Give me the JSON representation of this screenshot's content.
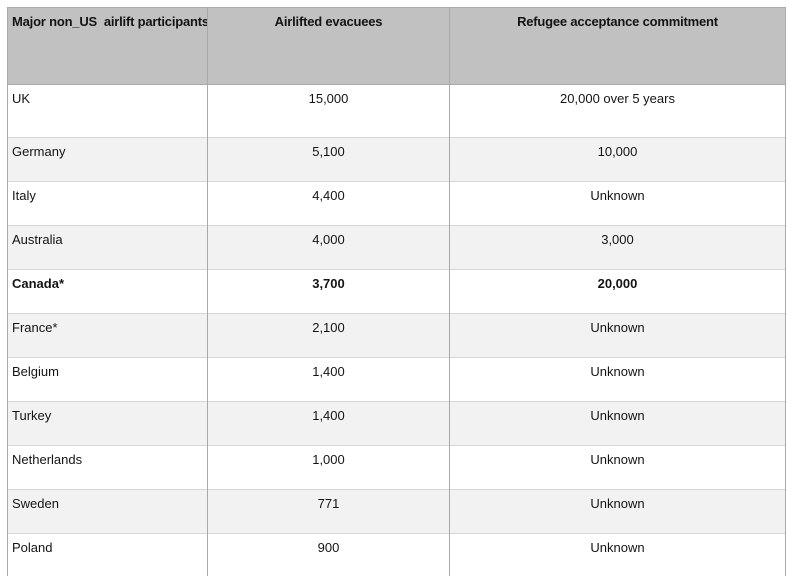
{
  "chart_data": {
    "type": "table",
    "columns": [
      "Major non_US  airlift participants",
      "Airlifted evacuees",
      "Refugee acceptance commitment"
    ],
    "rows": [
      [
        "UK",
        "15,000",
        "20,000 over 5 years"
      ],
      [
        "Germany",
        "5,100",
        "10,000"
      ],
      [
        "Italy",
        "4,400",
        "Unknown"
      ],
      [
        "Australia",
        "4,000",
        "3,000"
      ],
      [
        "Canada*",
        "3,700",
        "20,000"
      ],
      [
        "France*",
        "2,100",
        "Unknown"
      ],
      [
        "Belgium",
        "1,400",
        "Unknown"
      ],
      [
        "Turkey",
        "1,400",
        "Unknown"
      ],
      [
        "Netherlands",
        "1,000",
        "Unknown"
      ],
      [
        "Sweden",
        "771",
        "Unknown"
      ],
      [
        "Poland",
        "900",
        "Unknown"
      ]
    ],
    "bold_rows": [
      "Canada*"
    ],
    "layout": {
      "header_align": [
        "left",
        "center",
        "center"
      ],
      "body_align": [
        "left",
        "center",
        "center"
      ],
      "striping": "first row white and taller, then alternating light gray starting at second row"
    }
  },
  "colors": {
    "header_bg": "#c1c1c1",
    "alt_row_bg": "#f2f2f2",
    "vertical_border": "#a9a9a9",
    "horizontal_border": "#d6d6d6",
    "outer_border": "#ababab",
    "text": "#141414"
  }
}
